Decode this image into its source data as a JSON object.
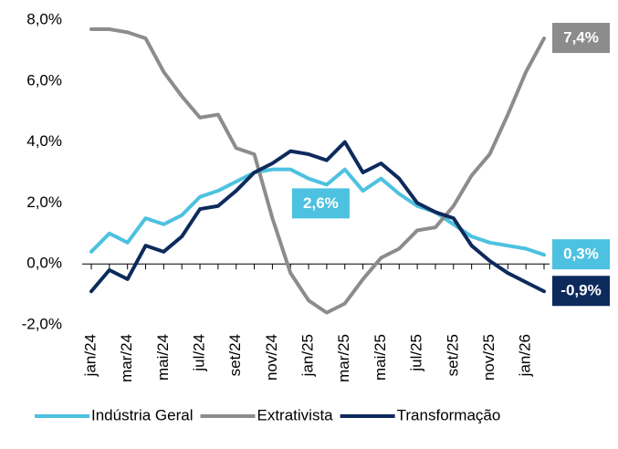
{
  "chart_data": {
    "type": "line",
    "categories": [
      "jan/24",
      null,
      "mar/24",
      null,
      "mai/24",
      null,
      "jul/24",
      null,
      "set/24",
      null,
      "nov/24",
      null,
      "jan/25",
      null,
      "mar/25",
      null,
      "mai/25",
      null,
      "jul/25",
      null,
      "set/25",
      null,
      "nov/25",
      null,
      "jan/26",
      null
    ],
    "series": [
      {
        "name": "Indústria Geral",
        "color": "#4dc1e0",
        "values": [
          0.4,
          1.0,
          0.7,
          1.5,
          1.3,
          1.6,
          2.2,
          2.4,
          2.7,
          3.0,
          3.1,
          3.1,
          2.8,
          2.6,
          3.1,
          2.4,
          2.8,
          2.3,
          1.9,
          1.7,
          1.3,
          0.9,
          0.7,
          0.6,
          0.5,
          0.3
        ],
        "value_labels": [
          null,
          null,
          null,
          null,
          null,
          null,
          null,
          null,
          null,
          null,
          null,
          null,
          null,
          "2,6%",
          null,
          null,
          null,
          null,
          null,
          null,
          null,
          null,
          null,
          null,
          null,
          "0,3%"
        ]
      },
      {
        "name": "Extrativista",
        "color": "#8c8c8c",
        "values": [
          7.7,
          7.7,
          7.6,
          7.4,
          6.3,
          5.5,
          4.8,
          4.9,
          3.8,
          3.6,
          1.5,
          -0.3,
          -1.2,
          -1.6,
          -1.3,
          -0.5,
          0.2,
          0.5,
          1.1,
          1.2,
          1.9,
          2.9,
          3.6,
          4.9,
          6.3,
          7.4
        ],
        "value_labels": [
          null,
          null,
          null,
          null,
          null,
          null,
          null,
          null,
          null,
          null,
          null,
          null,
          null,
          null,
          null,
          null,
          null,
          null,
          null,
          null,
          null,
          null,
          null,
          null,
          null,
          "7,4%"
        ]
      },
      {
        "name": "Transformação",
        "color": "#0d2a5c",
        "values": [
          -0.9,
          -0.2,
          -0.5,
          0.6,
          0.4,
          0.9,
          1.8,
          1.9,
          2.4,
          3.0,
          3.3,
          3.7,
          3.6,
          3.4,
          4.0,
          3.0,
          3.3,
          2.8,
          2.0,
          1.7,
          1.5,
          0.6,
          0.1,
          -0.3,
          -0.6,
          -0.9
        ],
        "value_labels": [
          null,
          null,
          null,
          null,
          null,
          null,
          null,
          null,
          null,
          null,
          null,
          null,
          null,
          null,
          null,
          null,
          null,
          null,
          null,
          null,
          null,
          null,
          null,
          null,
          null,
          "-0,9%"
        ]
      }
    ],
    "ylim": [
      -2,
      8
    ],
    "yticks": [
      {
        "value": -2,
        "label": "-2,0%"
      },
      {
        "value": 0,
        "label": "0,0%"
      },
      {
        "value": 2,
        "label": "2,0%"
      },
      {
        "value": 4,
        "label": "4,0%"
      },
      {
        "value": 6,
        "label": "6,0%"
      },
      {
        "value": 8,
        "label": "8,0%"
      }
    ],
    "legend": "bottom"
  }
}
